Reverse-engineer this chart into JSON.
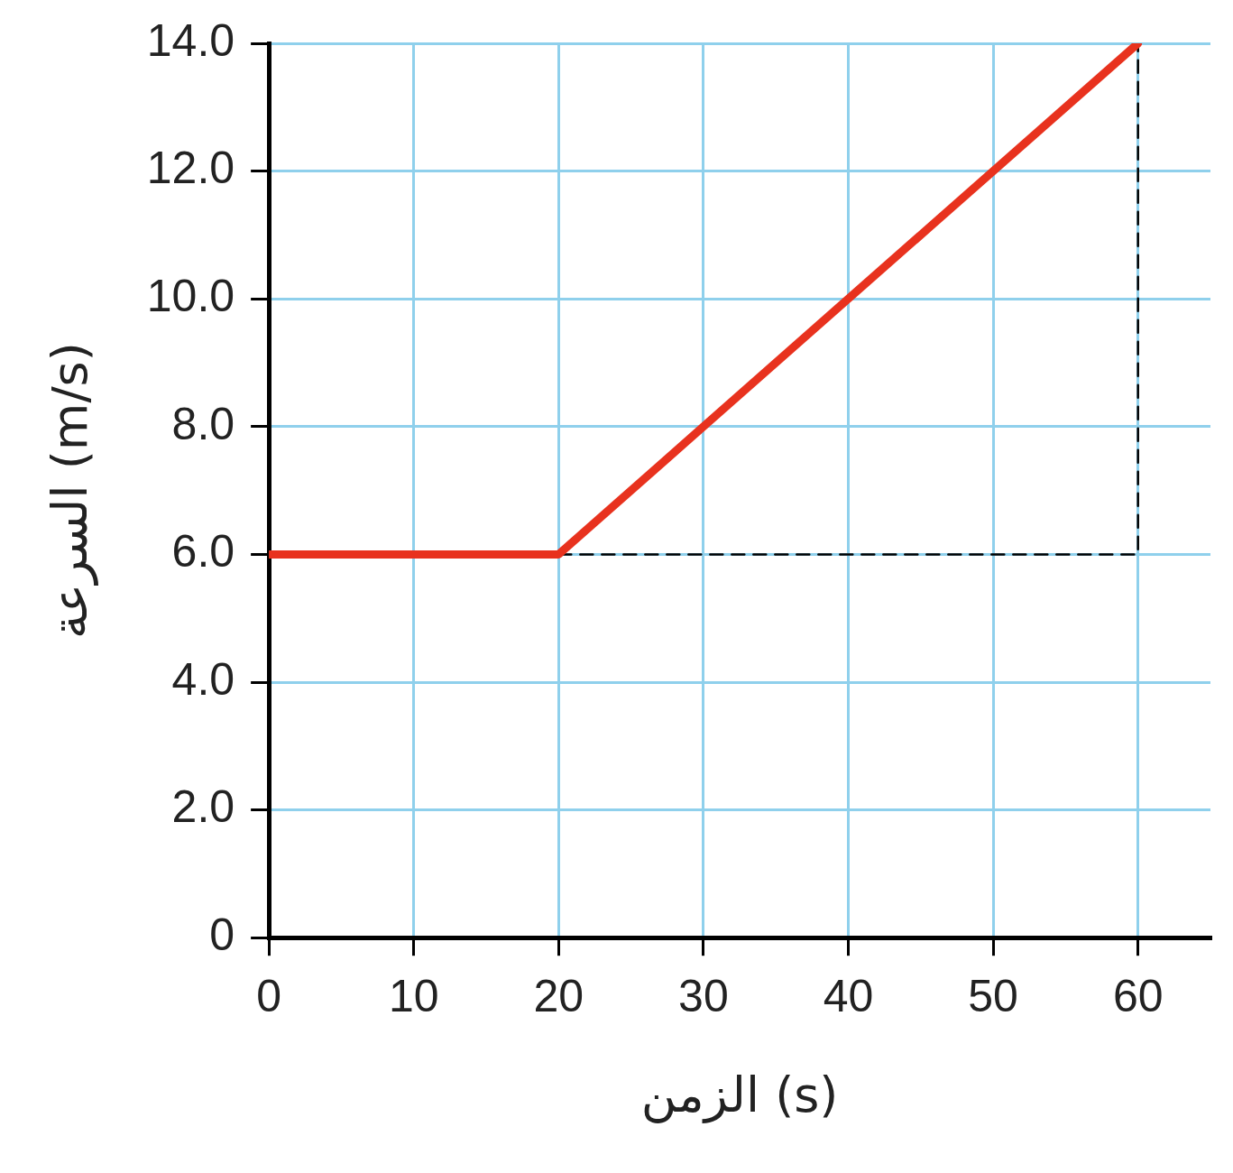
{
  "chart_data": {
    "type": "line",
    "xlabel": "الزمن (s)",
    "ylabel": "السرعة (m/s)",
    "xlim": [
      0,
      65
    ],
    "xticks": [
      0,
      10,
      20,
      30,
      40,
      50,
      60
    ],
    "ylim": [
      0,
      14
    ],
    "yticks": [
      0,
      {
        "value": 2,
        "label": "2.0"
      },
      {
        "value": 4,
        "label": "4.0"
      },
      {
        "value": 6,
        "label": "6.0"
      },
      {
        "value": 8,
        "label": "8.0"
      },
      {
        "value": 10,
        "label": "10.0"
      },
      {
        "value": 12,
        "label": "12.0"
      },
      {
        "value": 14,
        "label": "14.0"
      }
    ],
    "grid": true,
    "legend": false,
    "marker": "none",
    "series": [
      {
        "type": "line",
        "color": "#e8321e",
        "line_style": "solid",
        "x": [
          0,
          20,
          60
        ],
        "values": [
          6,
          6,
          14
        ]
      },
      {
        "type": "line",
        "color": "#000000",
        "line_style": "dashed",
        "x": [
          20,
          60,
          60
        ],
        "values": [
          6,
          6,
          14
        ]
      }
    ]
  }
}
